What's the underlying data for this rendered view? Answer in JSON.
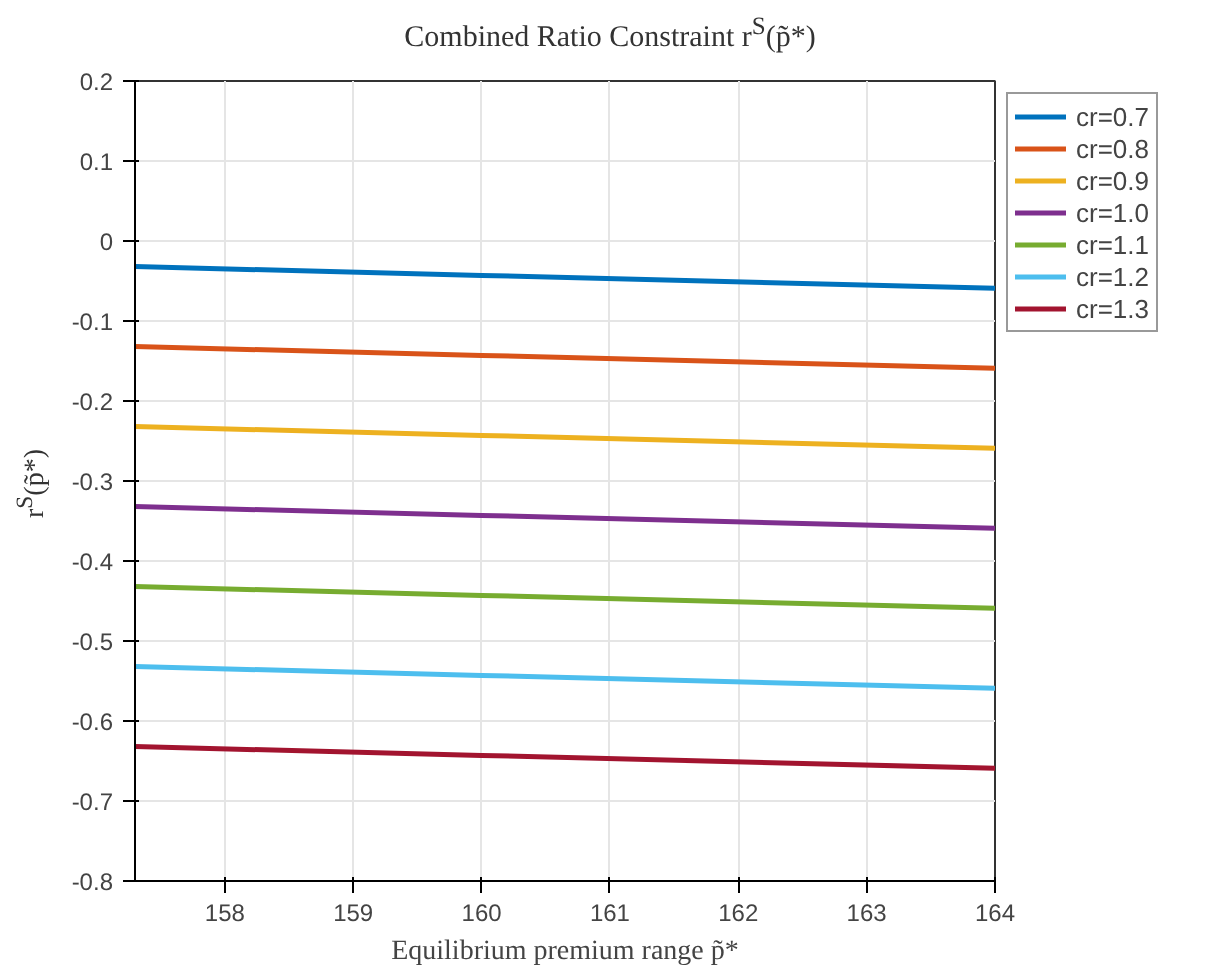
{
  "chart_data": {
    "type": "line",
    "title": "Combined Ratio Constraint r$^{S}$(p̃*)",
    "xlabel": "Equilibrium premium range p̃*",
    "ylabel": "r$^{S}$(p̃*)",
    "x": [
      157.3,
      160,
      164
    ],
    "series": [
      {
        "name": "cr=0.7",
        "color": "#0072bd",
        "values": [
          -0.032,
          -0.043,
          -0.059
        ]
      },
      {
        "name": "cr=0.8",
        "color": "#d95319",
        "values": [
          -0.132,
          -0.143,
          -0.159
        ]
      },
      {
        "name": "cr=0.9",
        "color": "#edb120",
        "values": [
          -0.232,
          -0.243,
          -0.259
        ]
      },
      {
        "name": "cr=1.0",
        "color": "#7e2f8e",
        "values": [
          -0.332,
          -0.343,
          -0.359
        ]
      },
      {
        "name": "cr=1.1",
        "color": "#77ac30",
        "values": [
          -0.432,
          -0.443,
          -0.459
        ]
      },
      {
        "name": "cr=1.2",
        "color": "#4dbeee",
        "values": [
          -0.532,
          -0.543,
          -0.559
        ]
      },
      {
        "name": "cr=1.3",
        "color": "#a2142f",
        "values": [
          -0.632,
          -0.643,
          -0.659
        ]
      }
    ],
    "xlim": [
      157.3,
      164
    ],
    "xticks": [
      158,
      159,
      160,
      161,
      162,
      163,
      164
    ],
    "ylim": [
      -0.8,
      0.2
    ],
    "yticks": [
      {
        "value": -0.8,
        "label": "-0.8"
      },
      {
        "value": -0.7,
        "label": "-0.7"
      },
      {
        "value": -0.6,
        "label": "-0.6"
      },
      {
        "value": -0.5,
        "label": "-0.5"
      },
      {
        "value": -0.4,
        "label": "-0.4"
      },
      {
        "value": -0.3,
        "label": "-0.3"
      },
      {
        "value": -0.2,
        "label": "-0.2"
      },
      {
        "value": -0.1,
        "label": "-0.1"
      },
      0,
      {
        "value": 0.1,
        "label": "0.1"
      },
      {
        "value": 0.2,
        "label": "0.2"
      }
    ],
    "grid": true,
    "legend": "top right",
    "line_style": "solid",
    "marker": "none"
  }
}
